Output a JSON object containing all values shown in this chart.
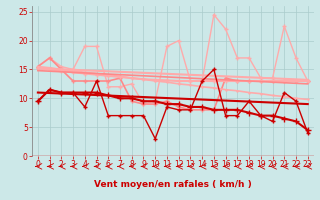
{
  "xlabel": "Vent moyen/en rafales ( km/h )",
  "xlabel_color": "#cc0000",
  "bg_color": "#cce8e8",
  "grid_color": "#aacccc",
  "xlim": [
    -0.5,
    23.5
  ],
  "ylim": [
    0,
    26
  ],
  "yticks": [
    0,
    5,
    10,
    15,
    20,
    25
  ],
  "xticks": [
    0,
    1,
    2,
    3,
    4,
    5,
    6,
    7,
    8,
    9,
    10,
    11,
    12,
    13,
    14,
    15,
    16,
    17,
    18,
    19,
    20,
    21,
    22,
    23
  ],
  "x": [
    0,
    1,
    2,
    3,
    4,
    5,
    6,
    7,
    8,
    9,
    10,
    11,
    12,
    13,
    14,
    15,
    16,
    17,
    18,
    19,
    20,
    21,
    22,
    23
  ],
  "line_smooth1_y": [
    9.5,
    11.5,
    11.0,
    11.0,
    11.0,
    11.0,
    10.5,
    10.0,
    10.0,
    9.5,
    9.5,
    9.0,
    9.0,
    8.5,
    8.5,
    8.0,
    8.0,
    8.0,
    7.5,
    7.0,
    7.0,
    6.5,
    6.0,
    4.5
  ],
  "line_smooth1_color": "#cc0000",
  "line_smooth1_lw": 1.5,
  "line_zigzag1_y": [
    9.5,
    11.5,
    11.0,
    11.0,
    8.5,
    13.0,
    7.0,
    7.0,
    7.0,
    7.0,
    3.0,
    8.5,
    8.0,
    8.0,
    13.0,
    15.0,
    7.0,
    7.0,
    9.5,
    7.0,
    6.0,
    11.0,
    9.5,
    4.0
  ],
  "line_zigzag1_color": "#cc0000",
  "line_zigzag1_lw": 1.0,
  "line_pink_smooth1_y": [
    15.2,
    15.0,
    14.8,
    14.5,
    14.3,
    14.1,
    13.9,
    13.7,
    13.5,
    13.3,
    13.2,
    13.1,
    13.0,
    13.0,
    13.0,
    13.0,
    13.0,
    13.0,
    13.0,
    13.0,
    13.0,
    13.0,
    13.0,
    13.0
  ],
  "line_pink_smooth1_color": "#ffaaaa",
  "line_pink_smooth1_lw": 1.5,
  "line_pink_smooth2_y": [
    15.5,
    15.3,
    15.0,
    14.8,
    14.5,
    14.3,
    14.0,
    13.8,
    13.5,
    13.3,
    13.0,
    12.8,
    12.5,
    12.3,
    12.0,
    11.8,
    11.5,
    11.3,
    11.0,
    10.8,
    10.5,
    10.3,
    10.0,
    9.8
  ],
  "line_pink_smooth2_color": "#ffaaaa",
  "line_pink_smooth2_lw": 1.2,
  "line_pink_zigzag_y": [
    15.5,
    17.0,
    15.5,
    15.0,
    19.0,
    19.0,
    12.0,
    12.0,
    12.5,
    9.0,
    9.5,
    19.0,
    20.0,
    13.0,
    13.0,
    24.5,
    22.0,
    17.0,
    17.0,
    13.5,
    13.5,
    22.5,
    17.0,
    13.0
  ],
  "line_pink_zigzag_color": "#ffaaaa",
  "line_pink_zigzag_lw": 1.0,
  "line_pink_mid_y": [
    15.5,
    17.0,
    15.0,
    13.0,
    13.0,
    13.0,
    13.0,
    13.5,
    9.5,
    9.0,
    9.0,
    9.5,
    8.5,
    8.0,
    8.0,
    8.0,
    13.5,
    13.0,
    13.0,
    13.0,
    13.0,
    13.0,
    13.0,
    13.0
  ],
  "line_pink_mid_color": "#ff8888",
  "line_pink_mid_lw": 1.2,
  "trend_dark1": [
    11.0,
    9.0
  ],
  "trend_dark1_color": "#cc0000",
  "trend_dark1_lw": 1.5,
  "trend_pink1": [
    15.2,
    13.2
  ],
  "trend_pink1_color": "#ffaaaa",
  "trend_pink1_lw": 1.5,
  "trend_pink2": [
    14.8,
    12.5
  ],
  "trend_pink2_color": "#ff8888",
  "trend_pink2_lw": 1.2,
  "arrow_color": "#cc0000",
  "tick_color": "#cc0000",
  "tick_labelsize": 5.5
}
